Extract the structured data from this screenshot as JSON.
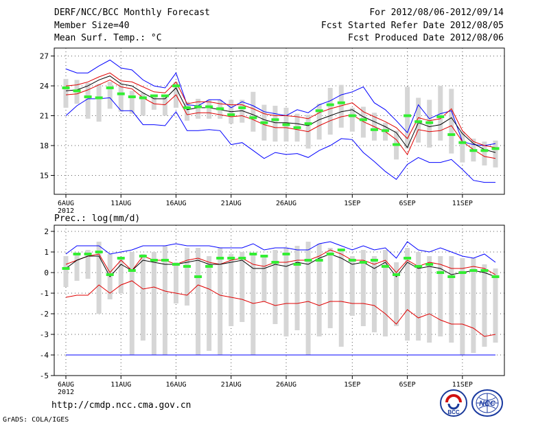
{
  "header": {
    "title": "DERF/NCC/BCC Monthly Forecast",
    "member_size": "Member Size=40",
    "variable": "Mean Surf. Temp.: °C",
    "forecast_period": "For 2012/08/06-2012/09/14",
    "fcst_started": "Fcst Started Refer Date 2012/08/05",
    "fcst_produced": "Fcst Produced Date 2012/08/06"
  },
  "footer": {
    "url": "http://cmdp.ncc.cma.gov.cn",
    "credit": "GrADS: COLA/IGES",
    "logo_bcc_text": "BCC",
    "logo_ncc_text": "NCC"
  },
  "chart_data": [
    {
      "type": "line",
      "title": "Mean Surf. Temp.: °C",
      "xlabel": "",
      "ylabel": "",
      "year_label": "2012",
      "x_tick_labels": [
        "6AUG",
        "11AUG",
        "16AUG",
        "21AUG",
        "26AUG",
        "1SEP",
        "6SEP",
        "11SEP"
      ],
      "x_tick_days": [
        0,
        5,
        10,
        15,
        20,
        26,
        31,
        36
      ],
      "ylim": [
        13.1,
        27.8
      ],
      "yticks": [
        15,
        18,
        21,
        24,
        27
      ],
      "ytick_labels": [
        "15",
        "18",
        "21",
        "24",
        "27"
      ],
      "grid": true,
      "days": 40,
      "series": [
        {
          "name": "max",
          "color": "#0000ff",
          "values": [
            25.7,
            25.3,
            25.3,
            26.0,
            26.6,
            25.8,
            25.6,
            24.6,
            24.0,
            23.8,
            25.3,
            22.1,
            22.0,
            22.6,
            22.6,
            21.8,
            22.4,
            22.0,
            21.4,
            21.2,
            21.0,
            21.6,
            21.3,
            22.1,
            22.5,
            23.1,
            23.4,
            23.9,
            22.3,
            21.6,
            20.5,
            19.3,
            22.1,
            20.7,
            21.2,
            21.5,
            18.4,
            18.1,
            18.0,
            18.2
          ]
        },
        {
          "name": "upper",
          "color": "#e00000",
          "values": [
            24.0,
            24.1,
            24.4,
            24.9,
            25.3,
            24.5,
            24.4,
            23.9,
            23.4,
            23.3,
            24.4,
            22.2,
            22.4,
            22.4,
            22.2,
            22.1,
            22.1,
            21.7,
            21.2,
            21.0,
            21.0,
            20.9,
            20.7,
            21.3,
            21.7,
            22.0,
            22.3,
            21.4,
            20.9,
            20.4,
            19.8,
            18.7,
            20.8,
            20.5,
            20.7,
            21.7,
            19.5,
            18.4,
            18.0,
            17.8
          ]
        },
        {
          "name": "mean",
          "color": "#000000",
          "values": [
            23.5,
            23.6,
            24.0,
            24.6,
            25.0,
            24.2,
            24.0,
            23.3,
            22.7,
            22.7,
            23.8,
            21.6,
            21.8,
            21.8,
            21.6,
            21.4,
            21.5,
            21.1,
            20.6,
            20.3,
            20.3,
            20.2,
            20.0,
            20.6,
            21.0,
            21.4,
            21.6,
            20.9,
            20.4,
            19.9,
            19.3,
            17.8,
            20.3,
            19.9,
            20.1,
            20.8,
            19.2,
            18.2,
            17.6,
            17.3
          ]
        },
        {
          "name": "lower",
          "color": "#e00000",
          "values": [
            23.1,
            23.2,
            23.6,
            24.1,
            24.6,
            23.9,
            23.7,
            22.8,
            22.2,
            22.1,
            23.1,
            21.1,
            21.3,
            21.3,
            21.1,
            20.9,
            21.0,
            20.6,
            20.1,
            19.8,
            19.8,
            19.6,
            19.4,
            20.0,
            20.5,
            20.9,
            21.1,
            20.4,
            19.9,
            19.4,
            18.6,
            17.1,
            19.6,
            19.4,
            19.5,
            20.0,
            18.4,
            17.6,
            16.9,
            16.7
          ]
        },
        {
          "name": "min",
          "color": "#0000ff",
          "values": [
            21.0,
            22.0,
            22.7,
            22.7,
            22.8,
            21.5,
            21.5,
            20.1,
            20.1,
            20.0,
            21.4,
            19.5,
            19.5,
            19.6,
            19.5,
            18.1,
            18.3,
            17.5,
            16.7,
            17.3,
            17.1,
            17.2,
            16.8,
            17.5,
            18.0,
            18.7,
            18.6,
            17.3,
            16.4,
            15.4,
            14.6,
            16.1,
            16.8,
            16.3,
            16.3,
            16.6,
            15.6,
            14.5,
            14.3,
            14.3
          ]
        }
      ],
      "box_low": [
        21.8,
        22.2,
        20.7,
        20.4,
        21.7,
        21.4,
        21.2,
        21.0,
        21.6,
        21.0,
        21.8,
        20.5,
        20.7,
        20.7,
        20.7,
        20.2,
        20.3,
        19.4,
        18.5,
        18.4,
        18.4,
        18.4,
        17.7,
        18.6,
        19.1,
        19.8,
        19.4,
        18.8,
        18.5,
        18.5,
        16.6,
        17.7,
        18.3,
        17.8,
        18.5,
        17.2,
        16.3,
        16.4,
        16.0,
        15.8
      ],
      "box_high": [
        24.7,
        24.6,
        24.3,
        24.2,
        24.4,
        24.2,
        23.5,
        23.3,
        22.9,
        22.9,
        24.4,
        22.4,
        22.7,
        22.6,
        22.6,
        22.6,
        22.6,
        23.4,
        22.1,
        22.0,
        21.8,
        21.2,
        21.1,
        22.2,
        23.8,
        24.1,
        21.8,
        21.9,
        21.3,
        20.3,
        19.5,
        23.9,
        22.8,
        22.6,
        24.0,
        23.7,
        19.4,
        18.7,
        18.4,
        18.5
      ],
      "observed": [
        23.8,
        23.5,
        22.9,
        22.8,
        23.8,
        23.2,
        22.9,
        22.8,
        23.0,
        23.0,
        24.0,
        21.8,
        21.9,
        21.9,
        21.7,
        21.1,
        21.8,
        20.8,
        20.3,
        20.6,
        20.1,
        19.8,
        20.2,
        21.5,
        22.1,
        22.3,
        21.0,
        20.6,
        19.6,
        19.5,
        18.1,
        21.0,
        20.4,
        20.3,
        20.9,
        19.1,
        18.3,
        17.5,
        17.5,
        17.7
      ]
    },
    {
      "type": "line",
      "title": "Prec.: log(mm/d)",
      "xlabel": "",
      "ylabel": "",
      "year_label": "2012",
      "x_tick_labels": [
        "6AUG",
        "11AUG",
        "16AUG",
        "21AUG",
        "26AUG",
        "1SEP",
        "6SEP",
        "11SEP"
      ],
      "x_tick_days": [
        0,
        5,
        10,
        15,
        20,
        26,
        31,
        36
      ],
      "ylim": [
        -5,
        2.3
      ],
      "yticks": [
        -5,
        -4,
        -3,
        -2,
        -1,
        0,
        1,
        2
      ],
      "ytick_labels": [
        "-5",
        "-4",
        "-3",
        "-2",
        "-1",
        "0",
        "1",
        "2"
      ],
      "grid": true,
      "days": 40,
      "series": [
        {
          "name": "max",
          "color": "#0000ff",
          "values": [
            0.9,
            1.3,
            1.3,
            1.3,
            0.9,
            1.0,
            1.1,
            1.3,
            1.3,
            1.3,
            1.4,
            1.3,
            1.3,
            1.3,
            1.2,
            1.2,
            1.2,
            1.4,
            1.1,
            1.2,
            1.2,
            1.1,
            1.1,
            1.4,
            1.5,
            1.3,
            1.1,
            1.3,
            1.1,
            1.2,
            0.7,
            1.5,
            1.1,
            1.0,
            1.2,
            1.0,
            0.8,
            0.7,
            0.9,
            0.5
          ]
        },
        {
          "name": "upper",
          "color": "#e00000",
          "values": [
            0.4,
            0.6,
            0.8,
            0.9,
            0.0,
            0.6,
            0.1,
            0.8,
            0.6,
            0.6,
            0.4,
            0.6,
            0.7,
            0.5,
            0.4,
            0.6,
            0.7,
            0.4,
            0.3,
            0.5,
            0.5,
            0.6,
            0.6,
            0.8,
            1.1,
            0.9,
            0.6,
            0.6,
            0.4,
            0.6,
            0.0,
            0.6,
            0.3,
            0.5,
            0.4,
            0.2,
            0.2,
            0.3,
            0.2,
            -0.1
          ]
        },
        {
          "name": "mean",
          "color": "#000000",
          "values": [
            0.2,
            0.6,
            0.8,
            0.8,
            -0.2,
            0.4,
            0.1,
            0.6,
            0.5,
            0.4,
            0.4,
            0.5,
            0.6,
            0.4,
            0.4,
            0.5,
            0.6,
            0.2,
            0.2,
            0.4,
            0.3,
            0.5,
            0.4,
            0.7,
            0.9,
            0.7,
            0.4,
            0.5,
            0.2,
            0.5,
            -0.2,
            0.5,
            0.2,
            0.3,
            0.2,
            -0.1,
            0.0,
            0.1,
            0.0,
            -0.2
          ]
        },
        {
          "name": "lower",
          "color": "#e00000",
          "values": [
            -1.2,
            -1.1,
            -1.1,
            -0.6,
            -1.0,
            -0.6,
            -0.4,
            -0.8,
            -0.7,
            -0.9,
            -1.0,
            -1.1,
            -0.6,
            -0.8,
            -1.1,
            -1.2,
            -1.3,
            -1.5,
            -1.4,
            -1.6,
            -1.5,
            -1.5,
            -1.4,
            -1.6,
            -1.4,
            -1.4,
            -1.5,
            -1.5,
            -1.6,
            -2.0,
            -2.5,
            -1.8,
            -2.2,
            -2.0,
            -2.3,
            -2.5,
            -2.5,
            -2.7,
            -3.1,
            -3.0
          ]
        },
        {
          "name": "min",
          "color": "#0000ff",
          "values": [
            -4.0,
            -4.0,
            -4.0,
            -4.0,
            -4.0,
            -4.0,
            -4.0,
            -4.0,
            -4.0,
            -4.0,
            -4.0,
            -4.0,
            -4.0,
            -4.0,
            -4.0,
            -4.0,
            -4.0,
            -4.0,
            -4.0,
            -4.0,
            -4.0,
            -4.0,
            -4.0,
            -4.0,
            -4.0,
            -4.0,
            -4.0,
            -4.0,
            -4.0,
            -4.0,
            -4.0,
            -4.0,
            -4.0,
            -4.0,
            -4.0,
            -4.0,
            -4.0,
            -4.0,
            -4.0,
            -4.0
          ]
        }
      ],
      "box_low": [
        -0.7,
        -0.4,
        -0.3,
        -2.0,
        -1.3,
        -1.0,
        -4.0,
        -3.3,
        -4.0,
        -4.0,
        -1.5,
        -1.6,
        -4.0,
        -3.8,
        -4.0,
        -2.6,
        -2.4,
        -4.0,
        -1.4,
        -2.5,
        -3.1,
        -2.8,
        -4.0,
        -3.1,
        -2.7,
        -3.6,
        -2.1,
        -2.6,
        -2.9,
        -3.1,
        -2.6,
        -3.3,
        -3.3,
        -3.4,
        -3.1,
        -3.4,
        -4.0,
        -3.9,
        -3.6,
        -3.4
      ],
      "box_high": [
        0.8,
        0.9,
        1.1,
        1.5,
        0.9,
        0.7,
        1.0,
        0.9,
        1.0,
        1.3,
        0.5,
        1.2,
        1.2,
        0.8,
        1.2,
        0.9,
        1.0,
        0.9,
        0.8,
        1.1,
        1.2,
        1.3,
        1.5,
        1.4,
        1.2,
        1.1,
        0.8,
        1.1,
        0.8,
        1.1,
        0.5,
        1.2,
        1.0,
        0.8,
        0.8,
        0.8,
        0.7,
        0.7,
        0.4,
        0.2
      ],
      "observed": [
        0.2,
        0.9,
        0.9,
        1.0,
        -0.1,
        0.7,
        0.1,
        0.8,
        0.6,
        0.6,
        0.4,
        0.3,
        -0.2,
        0.3,
        0.7,
        0.7,
        0.7,
        0.9,
        0.8,
        0.5,
        0.9,
        0.4,
        0.6,
        0.6,
        0.9,
        1.1,
        0.6,
        0.5,
        0.6,
        0.3,
        -0.1,
        0.7,
        0.3,
        0.4,
        0.0,
        -0.2,
        0.0,
        0.1,
        0.1,
        -0.2
      ]
    }
  ]
}
